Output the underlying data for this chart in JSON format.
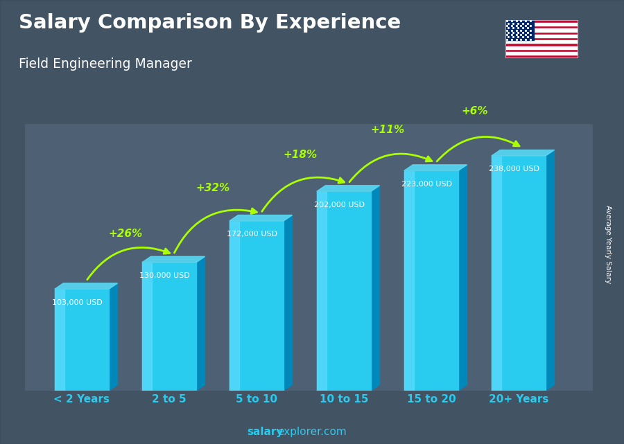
{
  "title": "Salary Comparison By Experience",
  "subtitle": "Field Engineering Manager",
  "categories": [
    "< 2 Years",
    "2 to 5",
    "5 to 10",
    "10 to 15",
    "15 to 20",
    "20+ Years"
  ],
  "values": [
    103000,
    130000,
    172000,
    202000,
    223000,
    238000
  ],
  "value_labels": [
    "103,000 USD",
    "130,000 USD",
    "172,000 USD",
    "202,000 USD",
    "223,000 USD",
    "238,000 USD"
  ],
  "pct_labels": [
    "+26%",
    "+32%",
    "+18%",
    "+11%",
    "+6%"
  ],
  "bar_front_color": "#29CCEE",
  "bar_side_color": "#0088BB",
  "bar_top_color": "#55DDFF",
  "bg_color": "#556677",
  "title_color": "#ffffff",
  "subtitle_color": "#ffffff",
  "value_label_color": "#ffffff",
  "pct_color": "#aaff00",
  "xticklabel_color": "#29CCEE",
  "watermark_normal": "explorer.com",
  "watermark_bold": "salary",
  "ylabel_text": "Average Yearly Salary",
  "ylim_max": 270000,
  "bar_width": 0.62,
  "bar_depth": 0.1,
  "bar_depth_v": 6000
}
